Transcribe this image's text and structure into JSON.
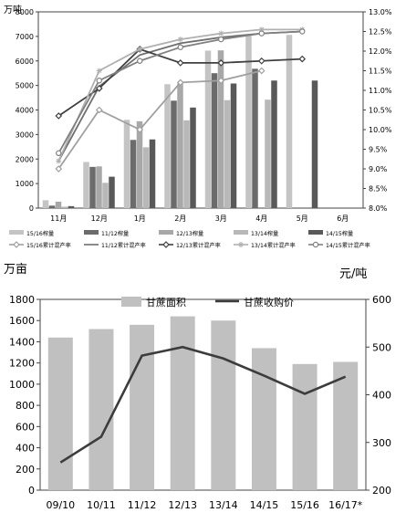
{
  "chart_data": [
    {
      "type": "bar",
      "y_left_label": "万吨",
      "y_left_ticks": [
        "0",
        "1000",
        "2000",
        "3000",
        "4000",
        "5000",
        "6000",
        "7000",
        "8000"
      ],
      "y_left_lim": [
        0,
        8000
      ],
      "y_right_ticks": [
        "8.0%",
        "8.5%",
        "9.0%",
        "9.5%",
        "10.0%",
        "10.5%",
        "11.0%",
        "11.5%",
        "12.0%",
        "12.5%",
        "13.0%"
      ],
      "y_right_lim": [
        8.0,
        13.0
      ],
      "categories": [
        "11月",
        "12月",
        "1月",
        "2月",
        "3月",
        "4月",
        "5月",
        "6月"
      ],
      "bar_series": [
        {
          "name": "15/16榨量",
          "color": "#c4c4c4",
          "values": [
            320,
            1880,
            3600,
            5050,
            6420,
            7020,
            7060,
            null
          ]
        },
        {
          "name": "11/12榨量",
          "color": "#6b6b6b",
          "values": [
            100,
            1680,
            2780,
            4380,
            5500,
            5680,
            null,
            null
          ]
        },
        {
          "name": "12/13榨量",
          "color": "#a8a8a8",
          "values": [
            260,
            1700,
            3540,
            5080,
            6430,
            null,
            null,
            null
          ]
        },
        {
          "name": "13/14榨量",
          "color": "#b8b8b8",
          "values": [
            60,
            1030,
            2480,
            3580,
            4400,
            4420,
            null,
            null
          ]
        },
        {
          "name": "14/15榨量",
          "color": "#595959",
          "values": [
            80,
            1280,
            2800,
            4100,
            5080,
            5200,
            5200,
            null
          ]
        }
      ],
      "line_series": [
        {
          "name": "15/16累计混产率",
          "color": "#a0a0a0",
          "marker": "diamond",
          "values": [
            9.0,
            10.5,
            10.0,
            11.2,
            11.25,
            11.5,
            null,
            null
          ]
        },
        {
          "name": "11/12累计混产率",
          "color": "#6e6e6e",
          "marker": "none",
          "values": [
            9.2,
            11.1,
            11.9,
            12.2,
            12.35,
            12.45,
            12.5,
            null
          ]
        },
        {
          "name": "12/13累计混产率",
          "color": "#404040",
          "marker": "diamond",
          "values": [
            10.35,
            11.05,
            12.05,
            11.7,
            11.7,
            11.75,
            11.8,
            null
          ]
        },
        {
          "name": "13/14累计混产率",
          "color": "#b0b0b0",
          "marker": "star",
          "values": [
            9.2,
            11.5,
            12.05,
            12.3,
            12.45,
            12.55,
            12.55,
            null
          ]
        },
        {
          "name": "14/15累计混产率",
          "color": "#808080",
          "marker": "circle",
          "values": [
            9.4,
            11.25,
            11.75,
            12.1,
            12.3,
            12.45,
            12.5,
            null
          ]
        }
      ]
    },
    {
      "type": "bar",
      "y_left_label": "万亩",
      "y_right_label": "元/吨",
      "y_left_ticks": [
        "0",
        "200",
        "400",
        "600",
        "800",
        "1000",
        "1200",
        "1400",
        "1600",
        "1800"
      ],
      "y_left_lim": [
        0,
        1800
      ],
      "y_right_ticks": [
        "200",
        "300",
        "400",
        "500",
        "600"
      ],
      "y_right_lim": [
        200,
        600
      ],
      "categories": [
        "09/10",
        "10/11",
        "11/12",
        "12/13",
        "13/14",
        "14/15",
        "15/16",
        "16/17*"
      ],
      "bar_series": [
        {
          "name": "甘蔗面积",
          "color": "#c0c0c0",
          "values": [
            1440,
            1520,
            1560,
            1640,
            1600,
            1340,
            1190,
            1210
          ]
        }
      ],
      "line_series": [
        {
          "name": "甘蔗收购价",
          "color": "#3c3c3c",
          "values": [
            258,
            312,
            482,
            500,
            476,
            440,
            402,
            438
          ]
        }
      ]
    }
  ]
}
